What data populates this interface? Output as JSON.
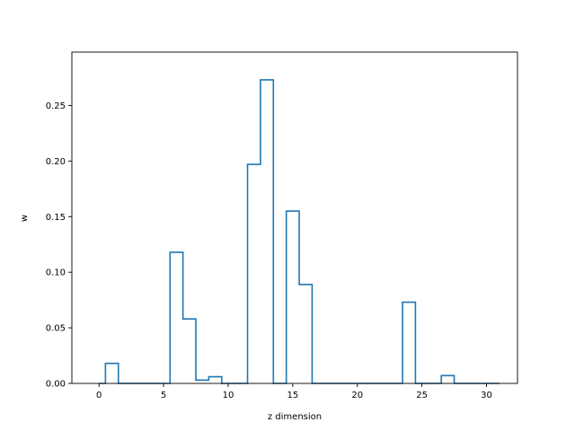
{
  "chart_data": {
    "type": "step",
    "title": "",
    "xlabel": "z dimension",
    "ylabel": "w",
    "xlim": [
      -2.1,
      32.4
    ],
    "ylim": [
      0.0,
      0.298
    ],
    "xticks": [
      0,
      5,
      10,
      15,
      20,
      25,
      30
    ],
    "xtick_labels": [
      "0",
      "5",
      "10",
      "15",
      "20",
      "25",
      "30"
    ],
    "yticks": [
      0.0,
      0.05,
      0.1,
      0.15,
      0.2,
      0.25
    ],
    "ytick_labels": [
      "0.00",
      "0.05",
      "0.10",
      "0.15",
      "0.20",
      "0.25"
    ],
    "grid": false,
    "step_where": "mid",
    "series": [
      {
        "color": "#1f77b4",
        "x": [
          0,
          1,
          2,
          3,
          4,
          5,
          6,
          7,
          8,
          9,
          10,
          11,
          12,
          13,
          14,
          15,
          16,
          17,
          18,
          19,
          20,
          21,
          22,
          23,
          24,
          25,
          26,
          27,
          28,
          29,
          30,
          31
        ],
        "values": [
          0.0,
          0.018,
          0.0,
          0.0,
          0.0,
          0.0,
          0.118,
          0.058,
          0.003,
          0.006,
          0.0,
          0.0,
          0.197,
          0.273,
          0.0,
          0.155,
          0.089,
          0.0,
          0.0,
          0.0,
          0.0,
          0.0,
          0.0,
          0.0,
          0.073,
          0.0,
          0.0,
          0.007,
          0.0,
          0.0,
          0.0,
          0.0
        ]
      }
    ]
  }
}
